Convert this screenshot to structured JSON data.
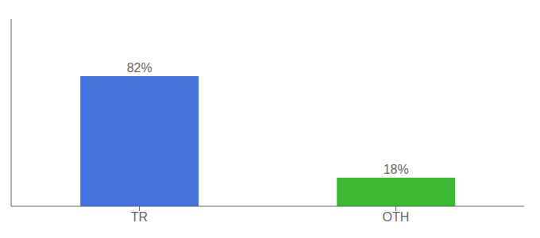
{
  "chart_data": {
    "type": "bar",
    "categories": [
      "TR",
      "OTH"
    ],
    "values": [
      82,
      18
    ],
    "value_labels": [
      "82%",
      "18%"
    ],
    "data_labels": true,
    "colors": [
      "#4472DD",
      "#3CB832"
    ],
    "ylim": [
      0,
      118
    ],
    "tick_labels": "x"
  }
}
